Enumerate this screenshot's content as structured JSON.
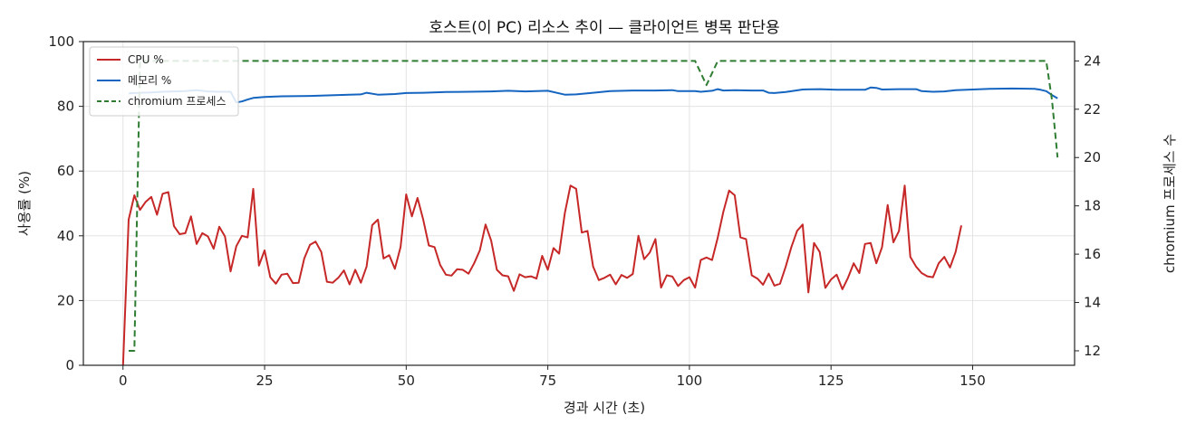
{
  "chart_data": {
    "type": "line",
    "title": "호스트(이 PC) 리소스 추이 — 클라이언트 병목 판단용",
    "xlabel": "경과 시간 (초)",
    "ylabel": "사용률 (%)",
    "y2label": "chromium 프로세스 수",
    "xlim": [
      -7,
      168
    ],
    "ylim": [
      0,
      100
    ],
    "y2lim": [
      11.4,
      24.8
    ],
    "x_ticks": [
      0,
      25,
      50,
      75,
      100,
      125,
      150
    ],
    "y_ticks": [
      0,
      20,
      40,
      60,
      80,
      100
    ],
    "y2_ticks": [
      12,
      14,
      16,
      18,
      20,
      22,
      24
    ],
    "grid": true,
    "legend_position": "top-left",
    "series": [
      {
        "name": "CPU %",
        "axis": "left",
        "color": "#c62828",
        "style": "solid",
        "points": [
          [
            0,
            0
          ],
          [
            1,
            45
          ],
          [
            2,
            52.5
          ],
          [
            3,
            48
          ],
          [
            4,
            50.5
          ],
          [
            5,
            52
          ],
          [
            6,
            46.5
          ],
          [
            7,
            53
          ],
          [
            8,
            53.5
          ],
          [
            9,
            43
          ],
          [
            10,
            40.5
          ],
          [
            11,
            40.8
          ],
          [
            12,
            46
          ],
          [
            13,
            37.5
          ],
          [
            14,
            40.8
          ],
          [
            15,
            39.8
          ],
          [
            16,
            36
          ],
          [
            17,
            42.8
          ],
          [
            18,
            39.8
          ],
          [
            19,
            29
          ],
          [
            20,
            36.8
          ],
          [
            21,
            40
          ],
          [
            22,
            39.5
          ],
          [
            23,
            54.5
          ],
          [
            24,
            30.8
          ],
          [
            25,
            35.5
          ],
          [
            26,
            27.2
          ],
          [
            27,
            25.2
          ],
          [
            28,
            28
          ],
          [
            29,
            28.3
          ],
          [
            30,
            25.4
          ],
          [
            31,
            25.5
          ],
          [
            32,
            33
          ],
          [
            33,
            37.2
          ],
          [
            34,
            38.2
          ],
          [
            35,
            35
          ],
          [
            36,
            25.8
          ],
          [
            37,
            25.5
          ],
          [
            38,
            27
          ],
          [
            39,
            29.3
          ],
          [
            40,
            25
          ],
          [
            41,
            29.5
          ],
          [
            42,
            25.5
          ],
          [
            43,
            30.5
          ],
          [
            44,
            43.3
          ],
          [
            45,
            45
          ],
          [
            46,
            33
          ],
          [
            47,
            34
          ],
          [
            48,
            29.8
          ],
          [
            49,
            36.5
          ],
          [
            50,
            52.8
          ],
          [
            51,
            46
          ],
          [
            52,
            51.7
          ],
          [
            53,
            45
          ],
          [
            54,
            37
          ],
          [
            55,
            36.5
          ],
          [
            56,
            31
          ],
          [
            57,
            28
          ],
          [
            58,
            27.7
          ],
          [
            59,
            29.7
          ],
          [
            60,
            29.5
          ],
          [
            61,
            28.3
          ],
          [
            62,
            31.5
          ],
          [
            63,
            35.5
          ],
          [
            64,
            43.5
          ],
          [
            65,
            38.5
          ],
          [
            66,
            29.5
          ],
          [
            67,
            27.8
          ],
          [
            68,
            27.5
          ],
          [
            69,
            23
          ],
          [
            70,
            28.1
          ],
          [
            71,
            27.2
          ],
          [
            72,
            27.5
          ],
          [
            73,
            26.8
          ],
          [
            74,
            33.8
          ],
          [
            75,
            29.5
          ],
          [
            76,
            36.2
          ],
          [
            77,
            34.5
          ],
          [
            78,
            47
          ],
          [
            79,
            55.5
          ],
          [
            80,
            54.5
          ],
          [
            81,
            41
          ],
          [
            82,
            41.5
          ],
          [
            83,
            30.5
          ],
          [
            84,
            26.3
          ],
          [
            85,
            27
          ],
          [
            86,
            28
          ],
          [
            87,
            25
          ],
          [
            88,
            27.9
          ],
          [
            89,
            27
          ],
          [
            90,
            28.2
          ],
          [
            91,
            40
          ],
          [
            92,
            32.8
          ],
          [
            93,
            34.8
          ],
          [
            94,
            39
          ],
          [
            95,
            24
          ],
          [
            96,
            27.8
          ],
          [
            97,
            27.4
          ],
          [
            98,
            24.5
          ],
          [
            99,
            26.3
          ],
          [
            100,
            27.2
          ],
          [
            101,
            24
          ],
          [
            102,
            32.5
          ],
          [
            103,
            33.3
          ],
          [
            104,
            32.5
          ],
          [
            105,
            39.5
          ],
          [
            106,
            47.5
          ],
          [
            107,
            54
          ],
          [
            108,
            52.5
          ],
          [
            109,
            39.5
          ],
          [
            110,
            39
          ],
          [
            111,
            27.8
          ],
          [
            112,
            26.8
          ],
          [
            113,
            24.9
          ],
          [
            114,
            28.3
          ],
          [
            115,
            24.6
          ],
          [
            116,
            25.2
          ],
          [
            117,
            30.5
          ],
          [
            118,
            36.5
          ],
          [
            119,
            41.5
          ],
          [
            120,
            43.5
          ],
          [
            121,
            22.5
          ],
          [
            122,
            37.8
          ],
          [
            123,
            35
          ],
          [
            124,
            23.9
          ],
          [
            125,
            26.5
          ],
          [
            126,
            28
          ],
          [
            127,
            23.5
          ],
          [
            128,
            27
          ],
          [
            129,
            31.5
          ],
          [
            130,
            28.5
          ],
          [
            131,
            37.5
          ],
          [
            132,
            37.8
          ],
          [
            133,
            31.5
          ],
          [
            134,
            36.5
          ],
          [
            135,
            49.5
          ],
          [
            136,
            38
          ],
          [
            137,
            41.5
          ],
          [
            138,
            55.5
          ],
          [
            139,
            33.5
          ],
          [
            140,
            30.5
          ],
          [
            141,
            28.5
          ],
          [
            142,
            27.5
          ],
          [
            143,
            27.2
          ],
          [
            144,
            31.5
          ],
          [
            145,
            33.5
          ],
          [
            146,
            30.2
          ],
          [
            147,
            35
          ],
          [
            148,
            43.2
          ]
        ]
      },
      {
        "name": "메모리 %",
        "axis": "left",
        "color": "#1565c0",
        "style": "solid",
        "points": [
          [
            1,
            84
          ],
          [
            3,
            84.2
          ],
          [
            5,
            84.3
          ],
          [
            7,
            84.5
          ],
          [
            9,
            84.6
          ],
          [
            11,
            84.7
          ],
          [
            13,
            85
          ],
          [
            15,
            84.6
          ],
          [
            17,
            84.5
          ],
          [
            19,
            84.5
          ],
          [
            20,
            81.2
          ],
          [
            21,
            81.5
          ],
          [
            22,
            82.1
          ],
          [
            23,
            82.6
          ],
          [
            25,
            82.9
          ],
          [
            28,
            83.1
          ],
          [
            33,
            83.2
          ],
          [
            38,
            83.5
          ],
          [
            42,
            83.7
          ],
          [
            43,
            84.2
          ],
          [
            45,
            83.6
          ],
          [
            48,
            83.8
          ],
          [
            50,
            84.1
          ],
          [
            53,
            84.2
          ],
          [
            57,
            84.4
          ],
          [
            61,
            84.5
          ],
          [
            65,
            84.6
          ],
          [
            68,
            84.8
          ],
          [
            71,
            84.6
          ],
          [
            75,
            84.8
          ],
          [
            78,
            83.6
          ],
          [
            80,
            83.7
          ],
          [
            83,
            84.2
          ],
          [
            86,
            84.7
          ],
          [
            90,
            84.9
          ],
          [
            94,
            84.9
          ],
          [
            97,
            85
          ],
          [
            98,
            84.7
          ],
          [
            101,
            84.7
          ],
          [
            102,
            84.5
          ],
          [
            104,
            84.8
          ],
          [
            105,
            85.3
          ],
          [
            106,
            84.9
          ],
          [
            108,
            85
          ],
          [
            111,
            84.9
          ],
          [
            113,
            84.9
          ],
          [
            114,
            84.2
          ],
          [
            115,
            84.1
          ],
          [
            117,
            84.4
          ],
          [
            120,
            85.2
          ],
          [
            123,
            85.3
          ],
          [
            126,
            85.1
          ],
          [
            128,
            85.1
          ],
          [
            131,
            85.1
          ],
          [
            132,
            85.8
          ],
          [
            133,
            85.7
          ],
          [
            134,
            85.2
          ],
          [
            137,
            85.3
          ],
          [
            140,
            85.3
          ],
          [
            141,
            84.7
          ],
          [
            143,
            84.5
          ],
          [
            145,
            84.6
          ],
          [
            147,
            85
          ],
          [
            150,
            85.2
          ],
          [
            153,
            85.4
          ],
          [
            157,
            85.5
          ],
          [
            161,
            85.4
          ],
          [
            162,
            85.1
          ],
          [
            163,
            84.7
          ],
          [
            164,
            83.5
          ],
          [
            165,
            82.5
          ]
        ]
      },
      {
        "name": "chromium 프로세스",
        "axis": "right",
        "color": "#2e7d32",
        "style": "dashed",
        "points": [
          [
            1,
            12
          ],
          [
            2,
            12
          ],
          [
            3,
            24
          ],
          [
            101,
            24
          ],
          [
            103,
            23
          ],
          [
            105,
            24
          ],
          [
            163,
            24
          ],
          [
            164,
            22.4
          ],
          [
            165,
            20
          ]
        ]
      }
    ]
  }
}
